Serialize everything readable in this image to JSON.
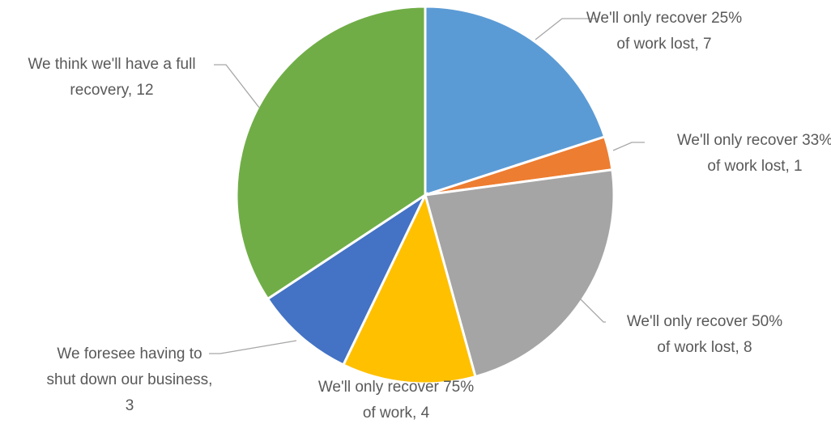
{
  "chart_data": {
    "type": "pie",
    "title": "",
    "slices": [
      {
        "label_lines": [
          "We'll only recover 25%",
          "of work lost, 7"
        ],
        "value": 7,
        "color": "#5b9bd5"
      },
      {
        "label_lines": [
          "We'll only recover 33%",
          "of work lost, 1"
        ],
        "value": 1,
        "color": "#ed7d31"
      },
      {
        "label_lines": [
          "We'll only recover 50%",
          "of work lost, 8"
        ],
        "value": 8,
        "color": "#a5a5a5"
      },
      {
        "label_lines": [
          "We'll only recover 75%",
          "of work, 4"
        ],
        "value": 4,
        "color": "#ffc000"
      },
      {
        "label_lines": [
          "We foresee having to",
          "shut down our business,",
          "3"
        ],
        "value": 3,
        "color": "#4472c4"
      },
      {
        "label_lines": [
          "We think we'll have a full",
          "recovery, 12"
        ],
        "value": 12,
        "color": "#70ad47"
      }
    ]
  }
}
